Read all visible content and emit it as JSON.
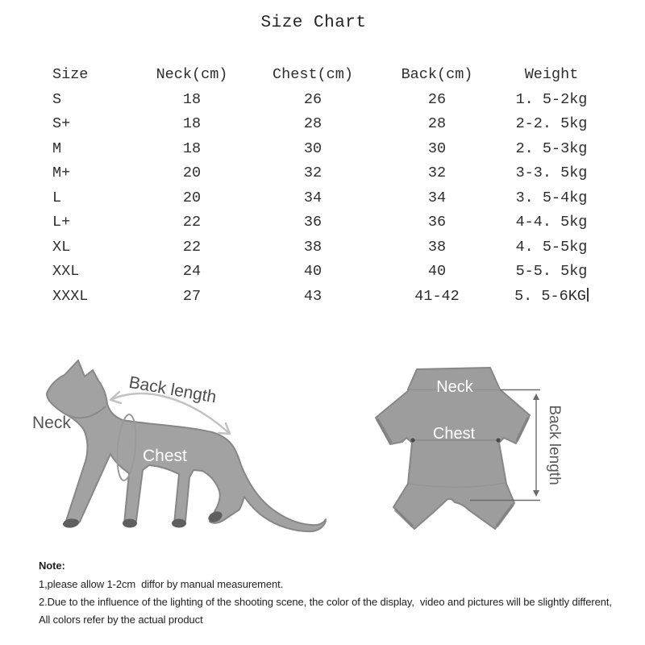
{
  "title": "Size Chart",
  "chart_data": {
    "type": "table",
    "title": "Size Chart",
    "columns": [
      "Size",
      "Neck(cm)",
      "Chest(cm)",
      "Back(cm)",
      "Weight"
    ],
    "rows": [
      [
        "S",
        "18",
        "26",
        "26",
        "1. 5-2kg"
      ],
      [
        "S+",
        "18",
        "28",
        "28",
        "2-2. 5kg"
      ],
      [
        "M",
        "18",
        "30",
        "30",
        "2. 5-3kg"
      ],
      [
        "M+",
        "20",
        "32",
        "32",
        "3-3. 5kg"
      ],
      [
        "L",
        "20",
        "34",
        "34",
        "3. 5-4kg"
      ],
      [
        "L+",
        "22",
        "36",
        "36",
        "4-4. 5kg"
      ],
      [
        "XL",
        "22",
        "38",
        "38",
        "4. 5-5kg"
      ],
      [
        "XXL",
        "24",
        "40",
        "40",
        "5-5. 5kg"
      ],
      [
        "XXXL",
        "27",
        "43",
        "41-42",
        "5. 5-6KG"
      ]
    ],
    "text_cursor_after_last_cell": true
  },
  "cat_diagram": {
    "neck_label": "Neck",
    "chest_label": "Chest",
    "back_length_label": "Back length"
  },
  "garment_diagram": {
    "neck_label": "Neck",
    "chest_label": "Chest",
    "back_length_label": "Back length"
  },
  "notes": {
    "heading": "Note:",
    "lines": [
      "1,please allow 1-2cm  diffor by manual measurement.",
      "2.Due to the influence of the lighting of the shooting scene, the color of the display,  video and pictures will be slightly different,",
      "All colors refer by the actual product"
    ]
  },
  "colors": {
    "figure_gray": "#a2a2a2",
    "garment_gray": "#9d9d9d",
    "outline_gray": "#878787",
    "paw_gray": "#5f5f5f",
    "label_dark": "#4d4d4d",
    "label_light": "#ffffff",
    "arrow_light": "#c2c2c2",
    "annotation_gray": "#6a6a6a",
    "table_text": "#2e2e2e"
  }
}
